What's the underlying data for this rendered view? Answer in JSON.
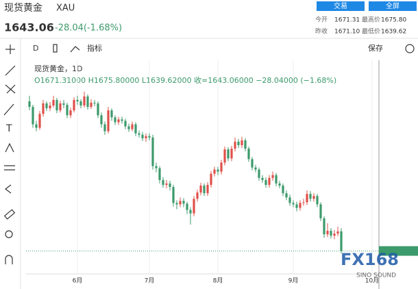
{
  "header": {
    "name": "现货黄金",
    "symbol": "XAU",
    "price": "1643.06",
    "change": "-28.04(-1.68%)",
    "buttons": [
      "交易",
      "全屏"
    ],
    "stats": [
      {
        "label": "今开",
        "value": "1671.31"
      },
      {
        "label": "最高价",
        "value": "1675.80"
      },
      {
        "label": "昨收",
        "value": "1671.10"
      },
      {
        "label": "最低价",
        "value": "1639.62"
      }
    ]
  },
  "toolbar": {
    "interval": "D",
    "indicators": "指标",
    "save": "保存"
  },
  "chart_data": {
    "type": "candlestick",
    "title": "现货黄金，1D",
    "ohlc_label": "O1671.31000 H1675.80000 L1639.62000 收=1643.06000 −28.04000 (−1.68%)",
    "up_color": "#e0504a",
    "down_color": "#3c9a6b",
    "open": [
      1858,
      1850,
      1825,
      1820,
      1840,
      1855,
      1848,
      1852,
      1860,
      1845,
      1855,
      1853,
      1838,
      1845,
      1860,
      1858,
      1852,
      1865,
      1850,
      1856,
      1855,
      1838,
      1825,
      1815,
      1845,
      1835,
      1828,
      1832,
      1830,
      1822,
      1818,
      1825,
      1812,
      1810,
      1805,
      1808,
      1806,
      1765,
      1762,
      1745,
      1738,
      1740,
      1735,
      1712,
      1710,
      1715,
      1711,
      1702,
      1697,
      1718,
      1727,
      1737,
      1726,
      1738,
      1754,
      1760,
      1757,
      1770,
      1789,
      1776,
      1790,
      1800,
      1795,
      1802,
      1790,
      1775,
      1763,
      1760,
      1748,
      1745,
      1738,
      1748,
      1752,
      1740,
      1737,
      1726,
      1720,
      1712,
      1710,
      1705,
      1712,
      1713,
      1725,
      1718,
      1722,
      1710,
      1690,
      1667,
      1672,
      1665,
      1668,
      1671.31
    ],
    "high": [
      1866,
      1853,
      1830,
      1844,
      1860,
      1858,
      1857,
      1866,
      1863,
      1859,
      1860,
      1856,
      1849,
      1864,
      1866,
      1861,
      1872,
      1868,
      1861,
      1860,
      1858,
      1842,
      1829,
      1850,
      1848,
      1838,
      1836,
      1836,
      1833,
      1826,
      1829,
      1828,
      1816,
      1814,
      1812,
      1812,
      1810,
      1770,
      1765,
      1749,
      1745,
      1744,
      1738,
      1716,
      1720,
      1719,
      1714,
      1706,
      1722,
      1731,
      1741,
      1740,
      1742,
      1758,
      1764,
      1764,
      1774,
      1793,
      1792,
      1794,
      1806,
      1804,
      1807,
      1805,
      1793,
      1778,
      1767,
      1763,
      1752,
      1749,
      1752,
      1757,
      1755,
      1744,
      1740,
      1730,
      1724,
      1716,
      1714,
      1716,
      1718,
      1730,
      1729,
      1726,
      1725,
      1713,
      1693,
      1683,
      1676,
      1673,
      1678,
      1675.8
    ],
    "low": [
      1845,
      1820,
      1815,
      1817,
      1836,
      1844,
      1844,
      1849,
      1841,
      1842,
      1848,
      1834,
      1834,
      1842,
      1853,
      1848,
      1849,
      1846,
      1847,
      1851,
      1834,
      1820,
      1810,
      1812,
      1830,
      1824,
      1824,
      1826,
      1818,
      1814,
      1815,
      1808,
      1806,
      1801,
      1800,
      1802,
      1760,
      1756,
      1740,
      1734,
      1733,
      1730,
      1707,
      1703,
      1706,
      1706,
      1696,
      1681,
      1693,
      1714,
      1723,
      1722,
      1722,
      1734,
      1750,
      1752,
      1753,
      1766,
      1772,
      1772,
      1786,
      1791,
      1791,
      1786,
      1771,
      1759,
      1756,
      1744,
      1741,
      1734,
      1734,
      1744,
      1736,
      1733,
      1722,
      1716,
      1708,
      1706,
      1700,
      1701,
      1708,
      1709,
      1714,
      1714,
      1706,
      1686,
      1662,
      1663,
      1661,
      1660,
      1664,
      1639.62
    ],
    "close": [
      1850,
      1825,
      1820,
      1840,
      1855,
      1848,
      1852,
      1860,
      1845,
      1855,
      1853,
      1838,
      1845,
      1860,
      1858,
      1852,
      1865,
      1850,
      1856,
      1855,
      1838,
      1825,
      1815,
      1845,
      1835,
      1828,
      1832,
      1830,
      1822,
      1818,
      1825,
      1812,
      1810,
      1805,
      1808,
      1806,
      1765,
      1762,
      1745,
      1738,
      1740,
      1735,
      1712,
      1710,
      1715,
      1711,
      1702,
      1697,
      1718,
      1727,
      1737,
      1726,
      1738,
      1754,
      1760,
      1757,
      1770,
      1789,
      1776,
      1790,
      1800,
      1795,
      1802,
      1790,
      1775,
      1763,
      1760,
      1748,
      1745,
      1738,
      1748,
      1752,
      1740,
      1737,
      1726,
      1720,
      1712,
      1710,
      1705,
      1712,
      1713,
      1725,
      1718,
      1722,
      1710,
      1690,
      1667,
      1672,
      1665,
      1668,
      1671.1,
      1643.06
    ],
    "xlim": [
      -1,
      102
    ],
    "ylim": [
      1615,
      1915
    ],
    "xticks": [
      {
        "value": 14,
        "label": "6月"
      },
      {
        "value": 35,
        "label": "7月"
      },
      {
        "value": 55,
        "label": "8月"
      },
      {
        "value": 77,
        "label": "9月"
      },
      {
        "value": 100,
        "label": "10月"
      }
    ],
    "watermark": "FX168",
    "watermark_sub": "SINO SOUND"
  }
}
